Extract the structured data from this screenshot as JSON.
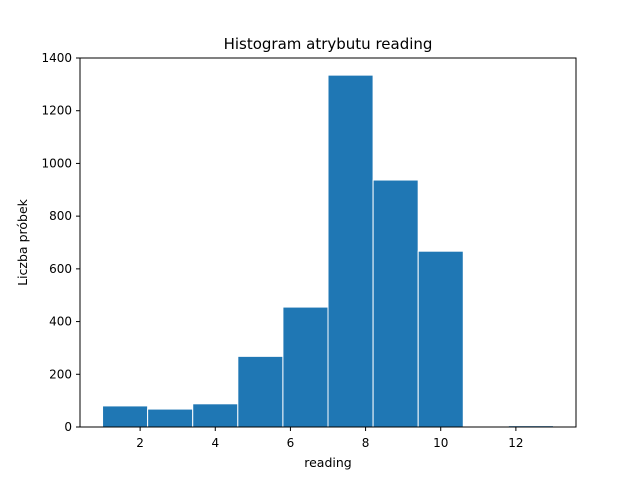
{
  "chart_data": {
    "type": "bar",
    "title": "Histogram atrybutu reading",
    "xlabel": "reading",
    "ylabel": "Liczba próbek",
    "xlim": [
      0.4,
      13.6
    ],
    "ylim": [
      0,
      1400
    ],
    "xticks": [
      2,
      4,
      6,
      8,
      10,
      12
    ],
    "yticks": [
      0,
      200,
      400,
      600,
      800,
      1000,
      1200,
      1400
    ],
    "bin_edges": [
      1.0,
      2.2,
      3.4,
      4.6,
      5.8,
      7.0,
      8.2,
      9.4,
      10.6,
      11.8,
      13.0
    ],
    "counts": [
      80,
      68,
      88,
      268,
      455,
      1335,
      937,
      667,
      0,
      5
    ],
    "bar_color": "#1f77b4",
    "bar_edge_color": "#ffffff",
    "grid": false,
    "legend": "none"
  }
}
